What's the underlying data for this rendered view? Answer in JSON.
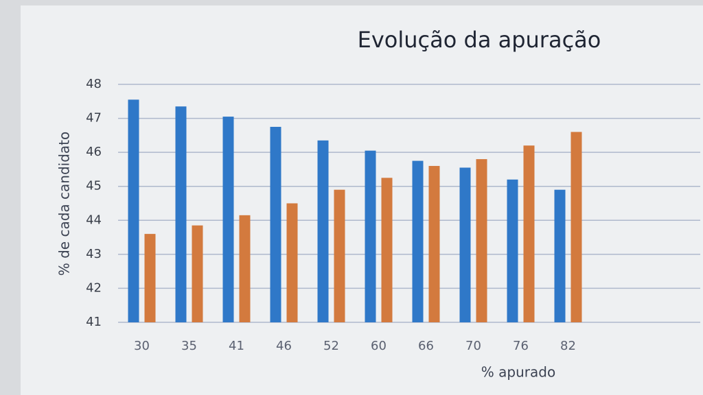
{
  "chart_data": {
    "type": "bar",
    "title": "Evolução da apuração",
    "y_label": "% de cada candidato",
    "x_label": "% apurado",
    "categories": [
      30,
      35,
      41,
      46,
      52,
      60,
      66,
      70,
      76,
      82
    ],
    "series": [
      {
        "color": "#2f78c8",
        "values": [
          47.55,
          47.35,
          47.05,
          46.75,
          46.35,
          46.05,
          45.75,
          45.55,
          45.2,
          44.9
        ]
      },
      {
        "color": "#d37a3e",
        "values": [
          43.6,
          43.85,
          44.15,
          44.5,
          44.9,
          45.25,
          45.6,
          45.8,
          46.2,
          46.6
        ]
      }
    ],
    "ylim": [
      41,
      48
    ],
    "yticks": [
      41,
      42,
      43,
      44,
      45,
      46,
      47,
      48
    ],
    "grid": true
  }
}
